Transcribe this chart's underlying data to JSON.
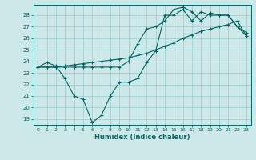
{
  "xlabel": "Humidex (Indice chaleur)",
  "bg_color": "#cce8e8",
  "line_color": "#006666",
  "grid_color": "#99cccc",
  "xlim": [
    -0.5,
    23.5
  ],
  "ylim": [
    18.5,
    28.9
  ],
  "yticks": [
    19,
    20,
    21,
    22,
    23,
    24,
    25,
    26,
    27,
    28
  ],
  "xticks": [
    0,
    1,
    2,
    3,
    4,
    5,
    6,
    7,
    8,
    9,
    10,
    11,
    12,
    13,
    14,
    15,
    16,
    17,
    18,
    19,
    20,
    21,
    22,
    23
  ],
  "line1_x": [
    0,
    1,
    2,
    3,
    4,
    5,
    6,
    7,
    8,
    9,
    10,
    11,
    12,
    13,
    14,
    15,
    16,
    17,
    18,
    19,
    20,
    21,
    22,
    23
  ],
  "line1_y": [
    23.5,
    23.9,
    23.6,
    22.5,
    21.0,
    20.7,
    18.7,
    19.3,
    21.0,
    22.2,
    22.2,
    22.5,
    23.9,
    24.9,
    28.0,
    28.0,
    28.5,
    27.5,
    28.3,
    28.0,
    28.0,
    28.0,
    27.0,
    26.5
  ],
  "line2_x": [
    0,
    1,
    2,
    3,
    4,
    5,
    6,
    7,
    8,
    9,
    10,
    11,
    12,
    13,
    14,
    15,
    16,
    17,
    18,
    19,
    20,
    21,
    22,
    23
  ],
  "line2_y": [
    23.5,
    23.5,
    23.5,
    23.6,
    23.7,
    23.8,
    23.9,
    24.0,
    24.1,
    24.2,
    24.3,
    24.5,
    24.7,
    25.0,
    25.3,
    25.6,
    26.0,
    26.3,
    26.6,
    26.8,
    27.0,
    27.2,
    27.5,
    26.2
  ],
  "line3_x": [
    0,
    1,
    2,
    3,
    4,
    5,
    6,
    7,
    8,
    9,
    10,
    11,
    12,
    13,
    14,
    15,
    16,
    17,
    18,
    19,
    20,
    21,
    22,
    23
  ],
  "line3_y": [
    23.5,
    23.5,
    23.5,
    23.5,
    23.5,
    23.5,
    23.5,
    23.5,
    23.5,
    23.5,
    24.0,
    25.5,
    26.8,
    27.0,
    27.5,
    28.5,
    28.7,
    28.3,
    27.5,
    28.2,
    28.0,
    28.0,
    27.0,
    26.2
  ]
}
